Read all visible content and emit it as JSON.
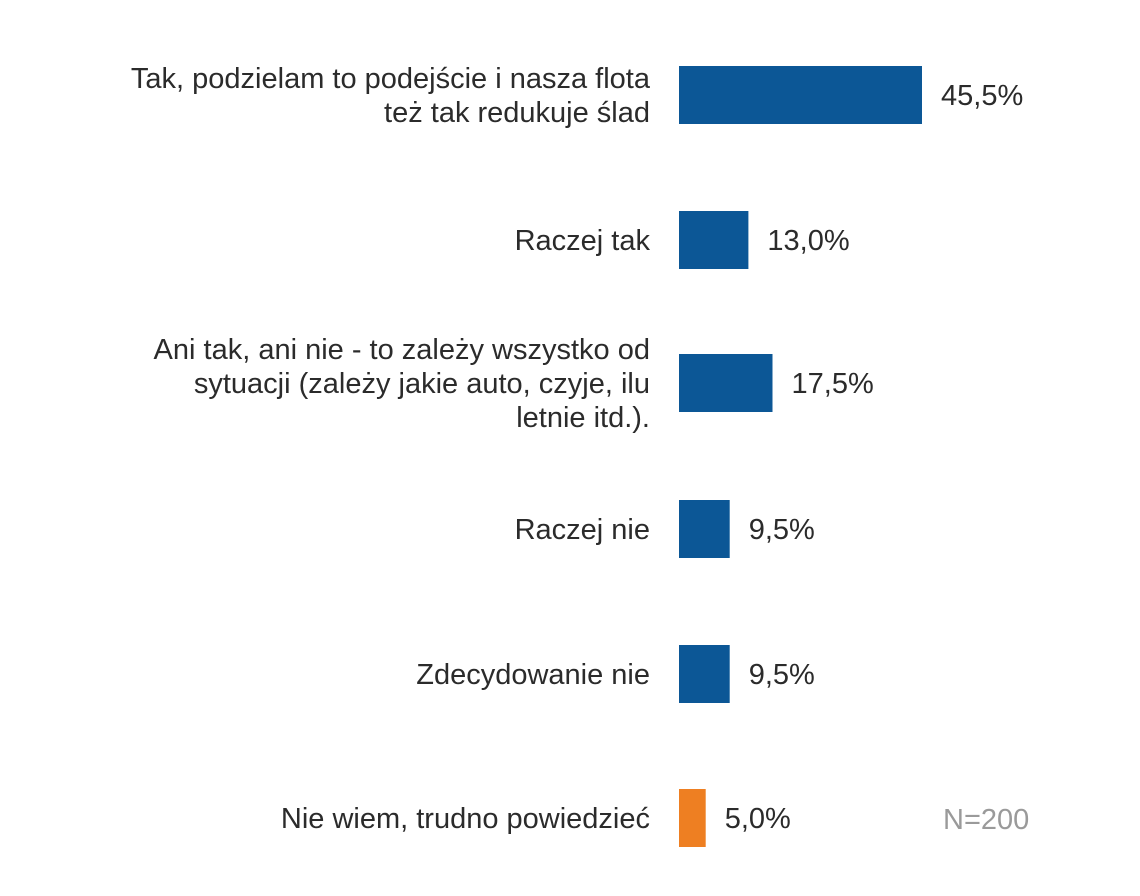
{
  "chart_data": {
    "type": "bar",
    "orientation": "horizontal",
    "categories": [
      [
        "Tak, podzielam to podejście i nasza flota",
        "też tak redukuje ślad"
      ],
      [
        "Raczej tak"
      ],
      [
        "Ani tak, ani nie - to zależy wszystko od",
        "sytuacji (zależy jakie auto, czyje, ilu",
        "letnie itd.)."
      ],
      [
        "Raczej nie"
      ],
      [
        "Zdecydowanie nie"
      ],
      [
        "Nie wiem, trudno powiedzieć"
      ]
    ],
    "values": [
      45.5,
      13.0,
      17.5,
      9.5,
      9.5,
      5.0
    ],
    "value_labels": [
      "45,5%",
      "13,0%",
      "17,5%",
      "9,5%",
      "9,5%",
      "5,0%"
    ],
    "bar_colors": [
      "#0c5796",
      "#0c5796",
      "#0c5796",
      "#0c5796",
      "#0c5796",
      "#ee7f22"
    ],
    "note": "N=200",
    "title": "",
    "xlabel": "",
    "ylabel": "",
    "xlim": [
      0,
      100
    ],
    "grid": false,
    "legend": "none"
  }
}
